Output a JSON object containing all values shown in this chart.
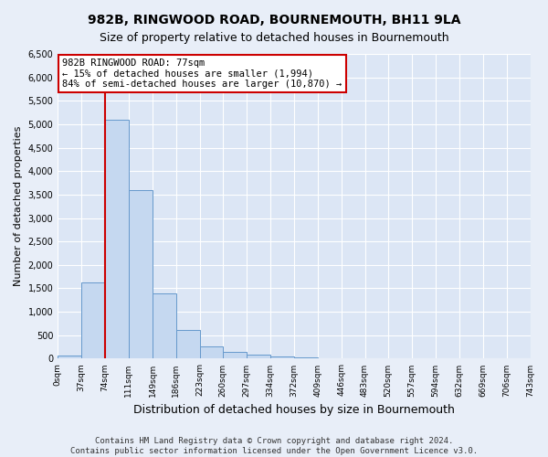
{
  "title": "982B, RINGWOOD ROAD, BOURNEMOUTH, BH11 9LA",
  "subtitle": "Size of property relative to detached houses in Bournemouth",
  "xlabel": "Distribution of detached houses by size in Bournemouth",
  "ylabel": "Number of detached properties",
  "footer_line1": "Contains HM Land Registry data © Crown copyright and database right 2024.",
  "footer_line2": "Contains public sector information licensed under the Open Government Licence v3.0.",
  "bar_edges": [
    0,
    37,
    74,
    111,
    149,
    186,
    223,
    260,
    297,
    334,
    372,
    409,
    446,
    483,
    520,
    557,
    594,
    632,
    669,
    706,
    743
  ],
  "bar_heights": [
    60,
    1620,
    5100,
    3600,
    1400,
    620,
    270,
    140,
    80,
    50,
    25,
    10,
    5,
    0,
    0,
    0,
    0,
    0,
    0,
    0
  ],
  "bar_color": "#c5d8f0",
  "bar_edge_color": "#6699cc",
  "vline_x": 74,
  "vline_color": "#cc0000",
  "annotation_text": "982B RINGWOOD ROAD: 77sqm\n← 15% of detached houses are smaller (1,994)\n84% of semi-detached houses are larger (10,870) →",
  "annotation_box_color": "#ffffff",
  "annotation_box_edge": "#cc0000",
  "ylim": [
    0,
    6500
  ],
  "yticks": [
    0,
    500,
    1000,
    1500,
    2000,
    2500,
    3000,
    3500,
    4000,
    4500,
    5000,
    5500,
    6000,
    6500
  ],
  "bg_color": "#e8eef8",
  "plot_bg_color": "#dce6f5",
  "grid_color": "#ffffff",
  "title_fontsize": 10,
  "subtitle_fontsize": 9,
  "ylabel_fontsize": 8,
  "xlabel_fontsize": 9,
  "tick_fontsize": 6.5,
  "footer_fontsize": 6.5,
  "tick_labels": [
    "0sqm",
    "37sqm",
    "74sqm",
    "111sqm",
    "149sqm",
    "186sqm",
    "223sqm",
    "260sqm",
    "297sqm",
    "334sqm",
    "372sqm",
    "409sqm",
    "446sqm",
    "483sqm",
    "520sqm",
    "557sqm",
    "594sqm",
    "632sqm",
    "669sqm",
    "706sqm",
    "743sqm"
  ]
}
